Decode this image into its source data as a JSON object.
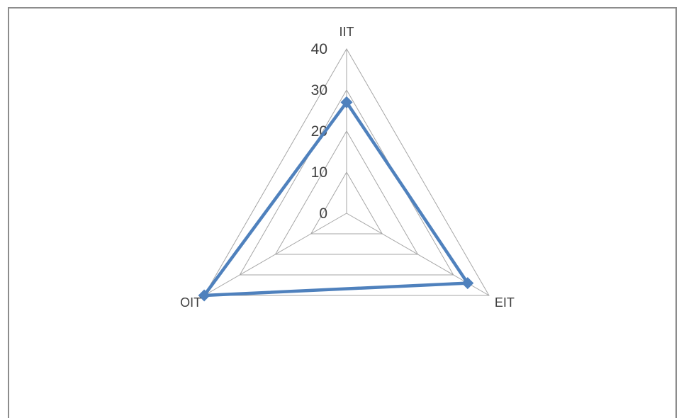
{
  "chart_data": {
    "type": "radar",
    "categories": [
      "IIT",
      "EIT",
      "OIT"
    ],
    "series": [
      {
        "values": [
          27,
          34,
          40
        ],
        "color": "#4f81bd",
        "marker": "diamond"
      }
    ],
    "rlim": [
      0,
      40
    ],
    "ticks": [
      "0",
      "10",
      "20",
      "30",
      "40"
    ],
    "grid": true,
    "legend": "none",
    "colors": {
      "grid": "#a6a6a6",
      "text": "#404040",
      "frame": "#8c8c8c"
    }
  }
}
